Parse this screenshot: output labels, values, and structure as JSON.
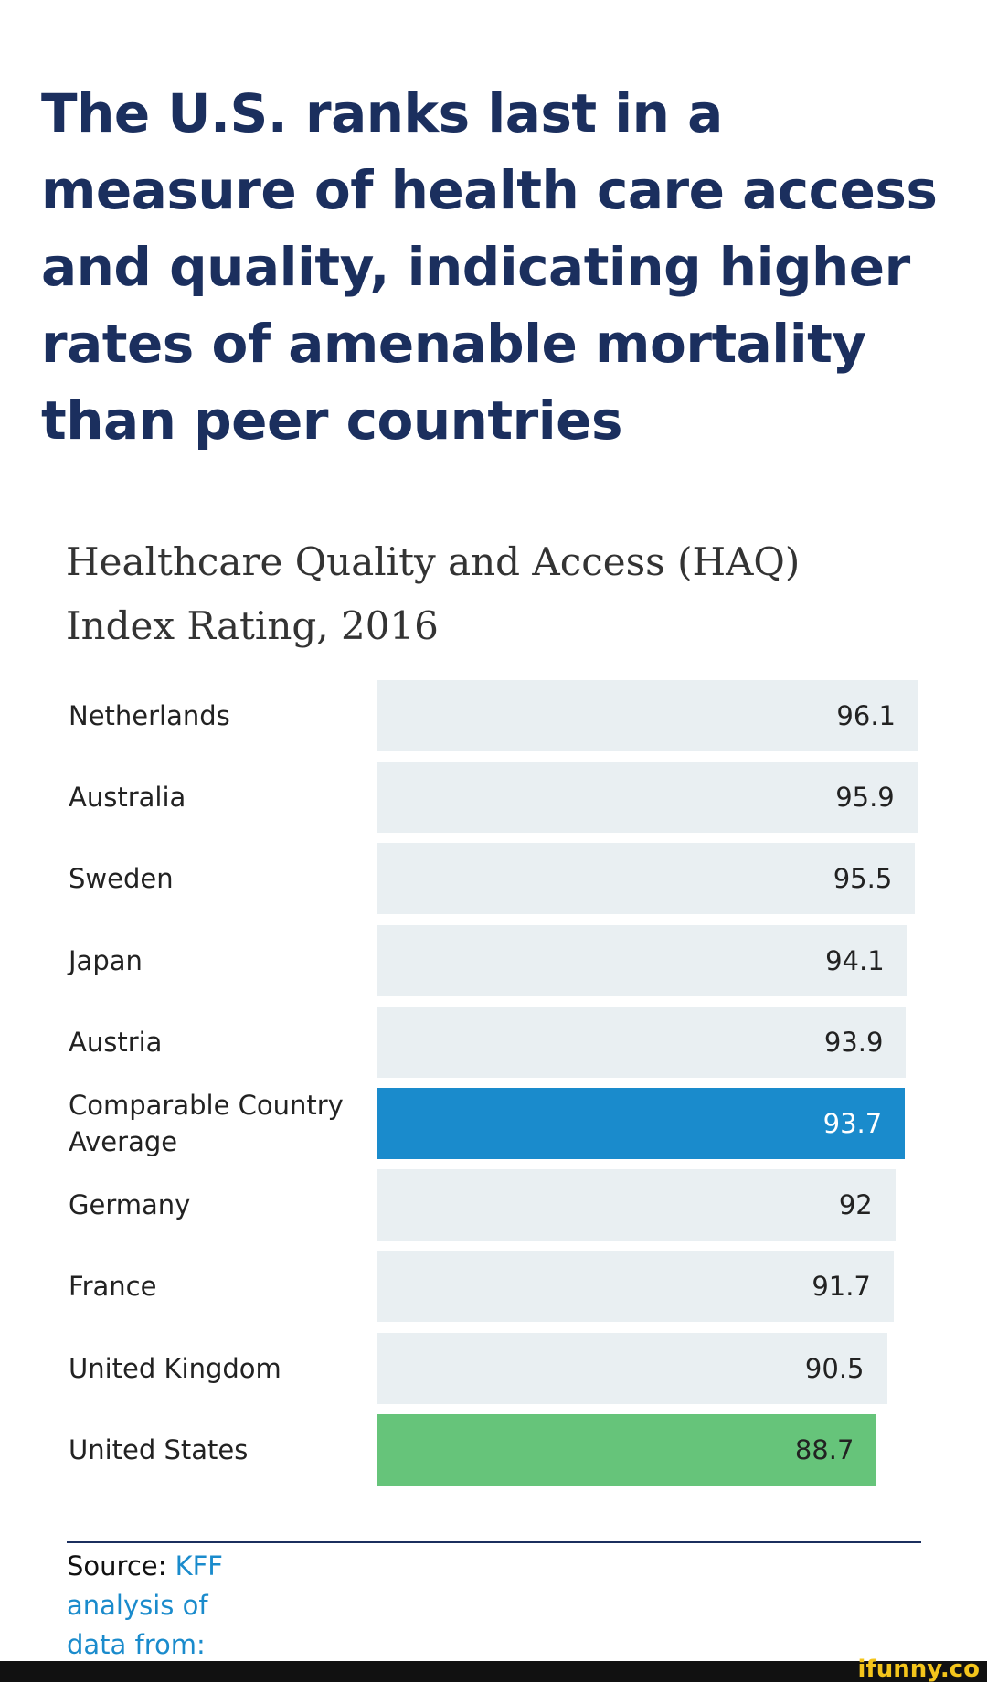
{
  "chart_data": {
    "type": "bar",
    "title": "The U.S. ranks last in a measure of health care access and quality, indicating higher rates of amenable mortality than peer countries",
    "subtitle": "Healthcare Quality and Access (HAQ) Index Rating, 2016",
    "categories": [
      "Netherlands",
      "Australia",
      "Sweden",
      "Japan",
      "Austria",
      "Comparable Country Average",
      "Germany",
      "France",
      "United Kingdom",
      "United States"
    ],
    "values": [
      96.1,
      95.9,
      95.5,
      94.1,
      93.9,
      93.7,
      92,
      91.7,
      90.5,
      88.7
    ],
    "colors": [
      "#e9eff2",
      "#e9eff2",
      "#e9eff2",
      "#e9eff2",
      "#e9eff2",
      "#1a8bcc",
      "#e9eff2",
      "#e9eff2",
      "#e9eff2",
      "#66c47a"
    ],
    "source_label": "Source:",
    "source_text": "KFF analysis of data from:",
    "watermark": "ifunny.co"
  }
}
